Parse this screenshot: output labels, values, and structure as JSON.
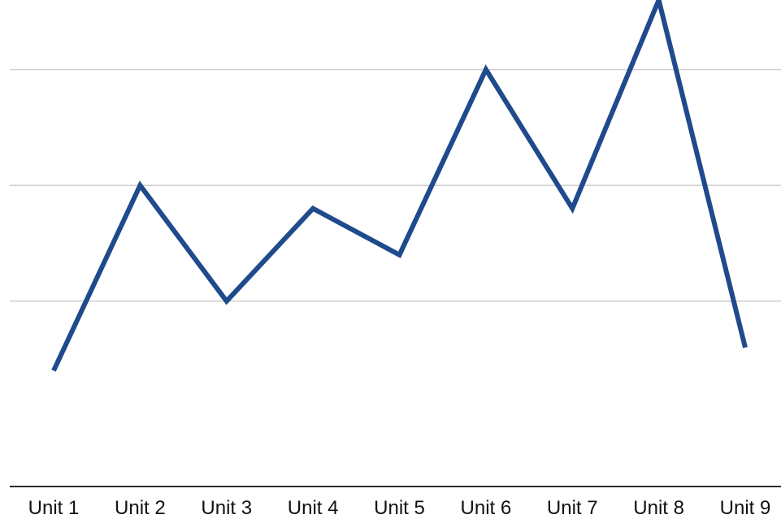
{
  "chart_data": {
    "type": "line",
    "title": "",
    "xlabel": "",
    "ylabel": "",
    "categories": [
      "Unit 1",
      "Unit 2",
      "Unit 3",
      "Unit 4",
      "Unit 5",
      "Unit 6",
      "Unit 7",
      "Unit 8",
      "Unit 9"
    ],
    "series": [
      {
        "values": [
          0.4,
          2.0,
          1.0,
          1.8,
          1.4,
          3.0,
          1.8,
          3.6,
          0.6
        ],
        "color": "#1f4a8c"
      }
    ],
    "ylim": [
      -0.6,
      3.6
    ],
    "gridlines_y": [
      1,
      2,
      3
    ],
    "grid": "horizontal",
    "legend": "none"
  }
}
